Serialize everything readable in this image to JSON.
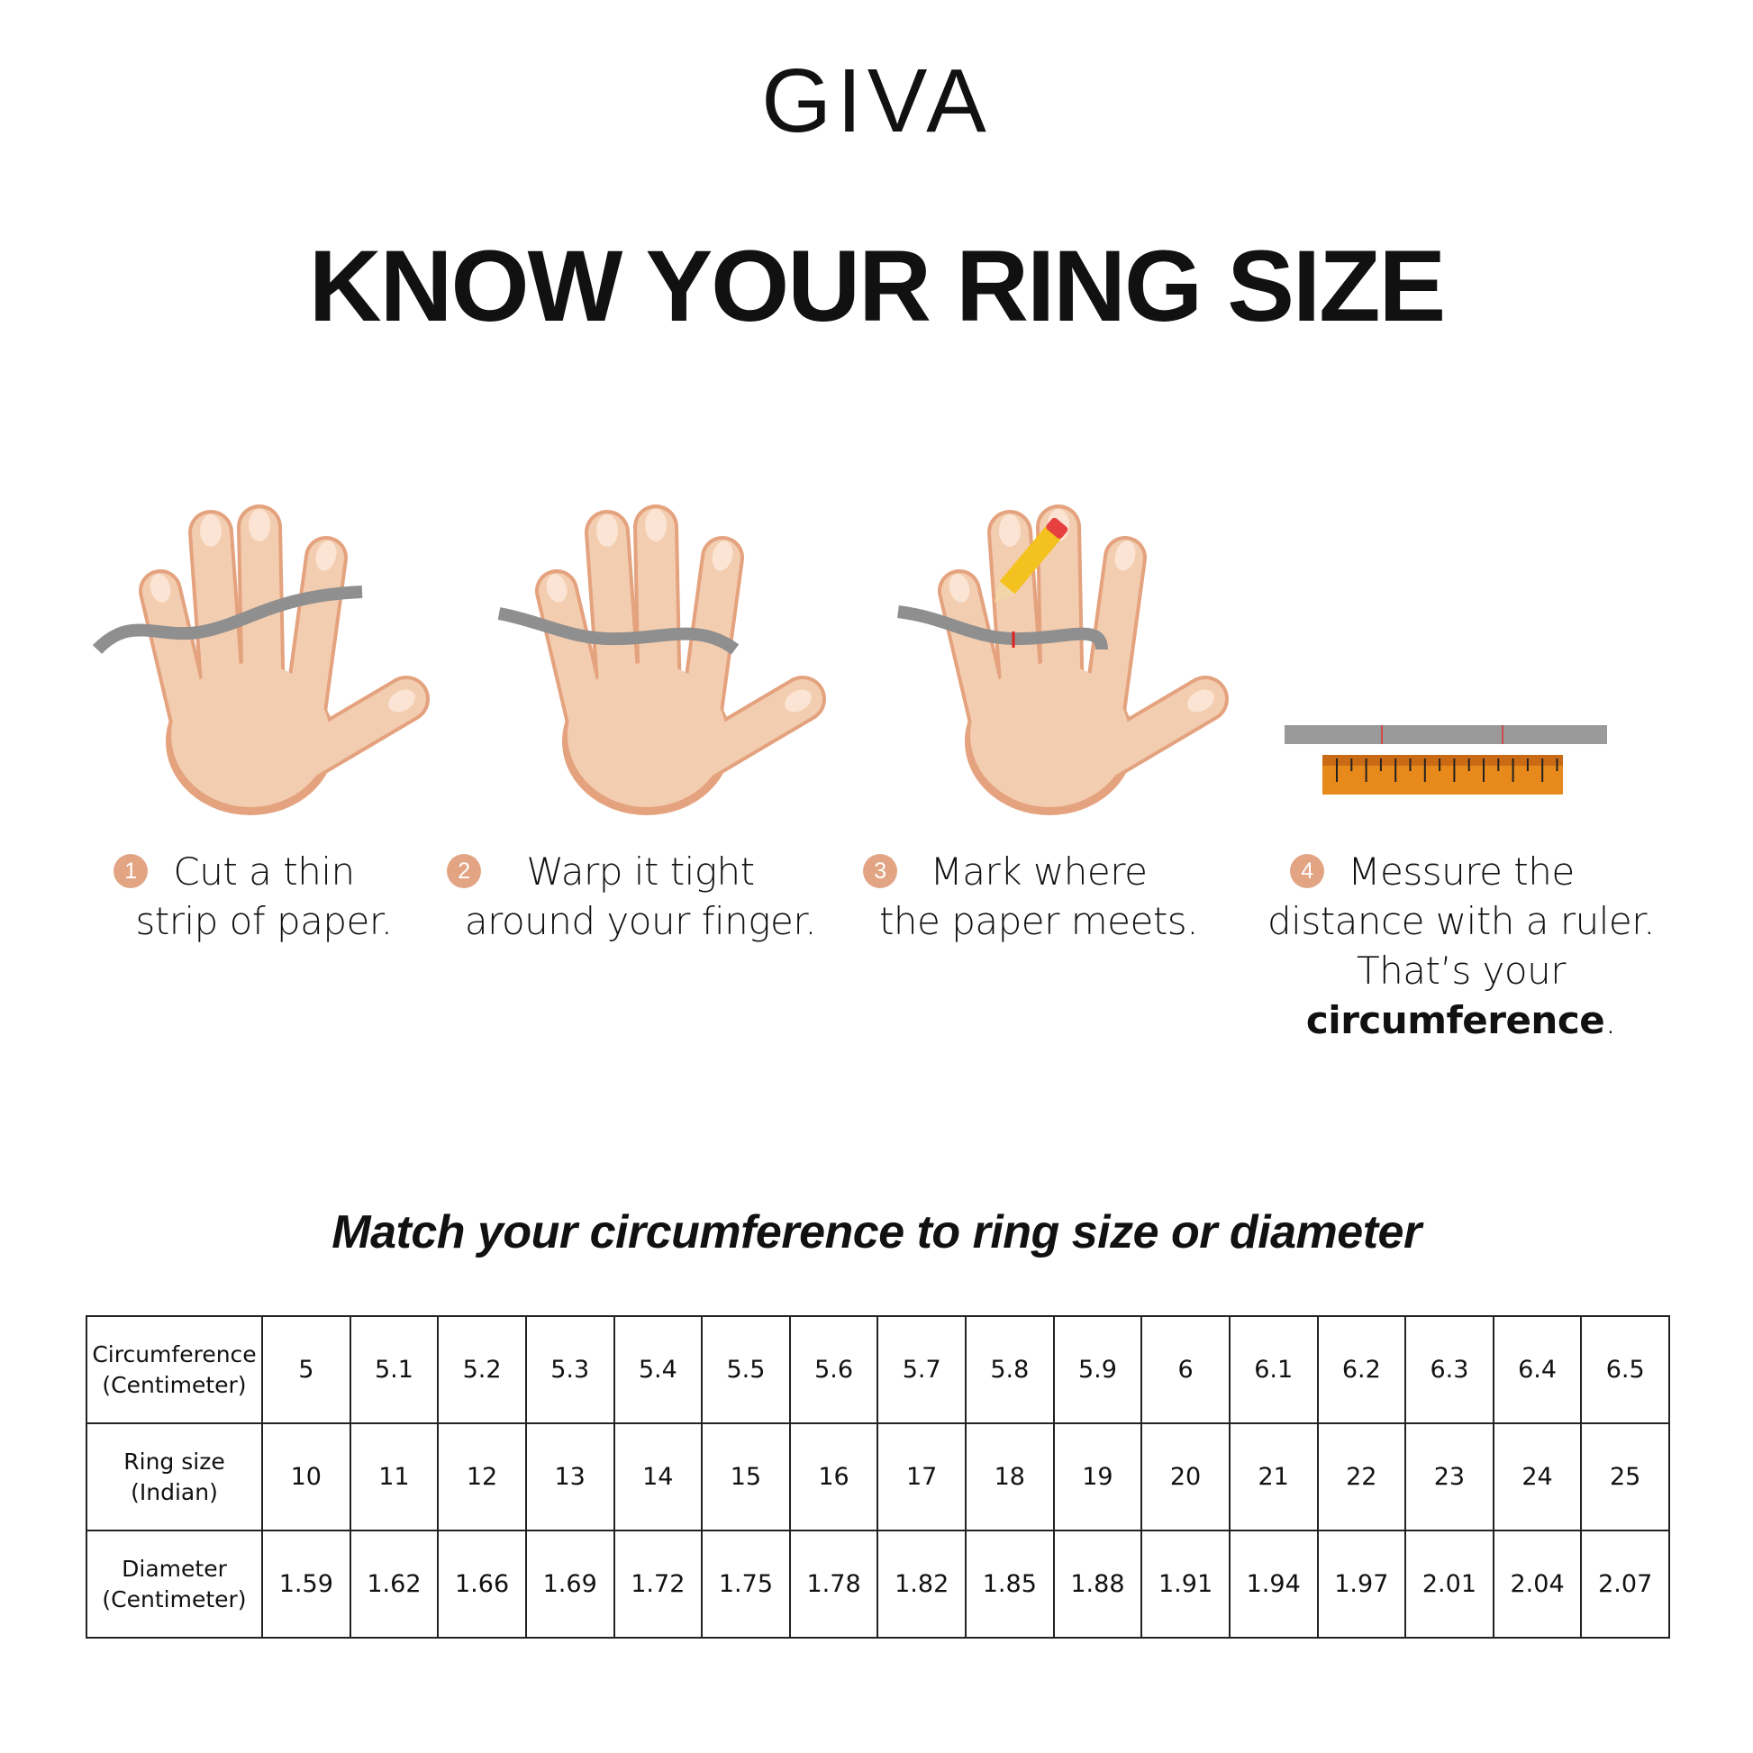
{
  "brand": {
    "logo": "GIVA"
  },
  "title": "KNOW YOUR RING SIZE",
  "steps": [
    {
      "number": "1",
      "line1": "Cut a thin",
      "line2": "strip of paper."
    },
    {
      "number": "2",
      "line1": "Warp it tight",
      "line2": "around your finger."
    },
    {
      "number": "3",
      "line1": "Mark where",
      "line2": "the paper meets."
    },
    {
      "number": "4",
      "line1": "Messure the",
      "line2": "distance with a ruler.",
      "line3_prefix": "That’s your ",
      "line3_bold": "circumference",
      "line3_suffix": "."
    }
  ],
  "subtitle": "Match your circumference to ring size or diameter",
  "table": {
    "rows": [
      {
        "label": [
          "Circumference",
          "(Centimeter)"
        ],
        "values": [
          "5",
          "5.1",
          "5.2",
          "5.3",
          "5.4",
          "5.5",
          "5.6",
          "5.7",
          "5.8",
          "5.9",
          "6",
          "6.1",
          "6.2",
          "6.3",
          "6.4",
          "6.5"
        ]
      },
      {
        "label": [
          "Ring size",
          "(Indian)"
        ],
        "values": [
          "10",
          "11",
          "12",
          "13",
          "14",
          "15",
          "16",
          "17",
          "18",
          "19",
          "20",
          "21",
          "22",
          "23",
          "24",
          "25"
        ]
      },
      {
        "label": [
          "Diameter",
          "(Centimeter)"
        ],
        "values": [
          "1.59",
          "1.62",
          "1.66",
          "1.69",
          "1.72",
          "1.75",
          "1.78",
          "1.82",
          "1.85",
          "1.88",
          "1.91",
          "1.94",
          "1.97",
          "2.01",
          "2.04",
          "2.07"
        ]
      }
    ]
  },
  "colors": {
    "skin": "#f3cdb0",
    "skin_shadow": "#e4a27e",
    "paper": "#8f8f8f",
    "ruler": "#e8891c",
    "step_badge": "#e2a483"
  }
}
